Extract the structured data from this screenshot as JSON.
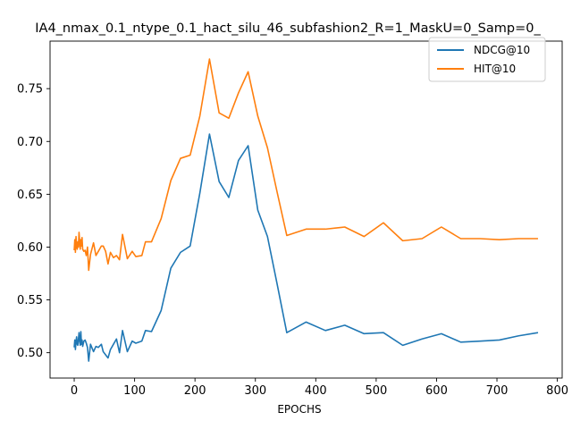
{
  "chart_data": {
    "type": "line",
    "title": "IA4_nmax_0.1_ntype_0.1_hact_silu_46_subfashion2_R=1_MaskU=0_Samp=0_",
    "xlabel": "EPOCHS",
    "ylabel": "",
    "xlim": [
      -40,
      808
    ],
    "ylim": [
      0.476,
      0.795
    ],
    "xticks": [
      0,
      100,
      200,
      300,
      400,
      500,
      600,
      700,
      800
    ],
    "yticks": [
      0.5,
      0.55,
      0.6,
      0.65,
      0.7,
      0.75
    ],
    "ytick_labels": [
      "0.50",
      "0.55",
      "0.60",
      "0.65",
      "0.70",
      "0.75"
    ],
    "grid": false,
    "legend_position": "top-right",
    "series": [
      {
        "name": "NDCG@10",
        "color": "#1f77b4",
        "x": [
          0,
          1,
          2,
          3,
          4,
          5,
          6,
          7,
          8,
          9,
          10,
          11,
          12,
          13,
          14,
          16,
          18,
          20,
          22,
          24,
          27,
          32,
          36,
          40,
          45,
          48,
          52,
          56,
          60,
          65,
          70,
          75,
          80,
          88,
          96,
          102,
          112,
          118,
          128,
          144,
          160,
          176,
          192,
          208,
          224,
          240,
          256,
          272,
          288,
          304,
          320,
          336,
          352,
          384,
          416,
          448,
          480,
          512,
          544,
          576,
          608,
          640,
          672,
          704,
          736,
          768
        ],
        "y": [
          0.505,
          0.512,
          0.503,
          0.511,
          0.515,
          0.508,
          0.507,
          0.513,
          0.519,
          0.511,
          0.507,
          0.52,
          0.508,
          0.512,
          0.506,
          0.511,
          0.512,
          0.509,
          0.505,
          0.492,
          0.508,
          0.501,
          0.506,
          0.505,
          0.508,
          0.501,
          0.498,
          0.495,
          0.503,
          0.508,
          0.513,
          0.5,
          0.521,
          0.501,
          0.511,
          0.509,
          0.511,
          0.521,
          0.52,
          0.54,
          0.58,
          0.595,
          0.601,
          0.651,
          0.707,
          0.662,
          0.647,
          0.682,
          0.696,
          0.635,
          0.61,
          0.565,
          0.519,
          0.529,
          0.521,
          0.526,
          0.518,
          0.519,
          0.507,
          0.513,
          0.518,
          0.51,
          0.511,
          0.512,
          0.516,
          0.519
        ]
      },
      {
        "name": "HIT@10",
        "color": "#ff7f0e",
        "x": [
          0,
          1,
          2,
          3,
          4,
          5,
          6,
          7,
          8,
          9,
          10,
          11,
          12,
          13,
          14,
          16,
          18,
          20,
          22,
          24,
          27,
          32,
          36,
          40,
          45,
          48,
          52,
          56,
          60,
          65,
          70,
          75,
          80,
          88,
          96,
          102,
          112,
          118,
          128,
          144,
          160,
          176,
          192,
          208,
          224,
          240,
          256,
          272,
          288,
          304,
          320,
          336,
          352,
          384,
          416,
          448,
          480,
          512,
          544,
          576,
          608,
          640,
          672,
          704,
          736,
          768
        ],
        "y": [
          0.597,
          0.607,
          0.595,
          0.61,
          0.601,
          0.598,
          0.605,
          0.6,
          0.614,
          0.606,
          0.598,
          0.607,
          0.601,
          0.609,
          0.598,
          0.596,
          0.597,
          0.592,
          0.6,
          0.578,
          0.593,
          0.604,
          0.592,
          0.596,
          0.601,
          0.601,
          0.596,
          0.584,
          0.595,
          0.59,
          0.592,
          0.588,
          0.612,
          0.589,
          0.596,
          0.591,
          0.592,
          0.605,
          0.605,
          0.627,
          0.663,
          0.684,
          0.687,
          0.724,
          0.778,
          0.727,
          0.722,
          0.746,
          0.766,
          0.724,
          0.694,
          0.652,
          0.611,
          0.617,
          0.617,
          0.619,
          0.61,
          0.623,
          0.606,
          0.608,
          0.619,
          0.608,
          0.608,
          0.607,
          0.608,
          0.608
        ]
      }
    ]
  }
}
